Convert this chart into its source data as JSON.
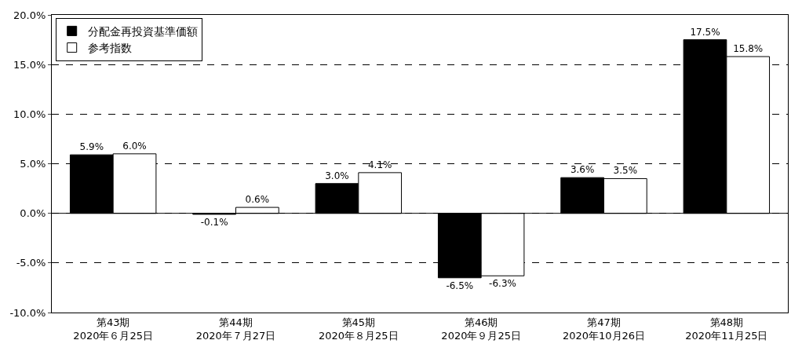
{
  "chart_data": {
    "type": "bar",
    "categories": [
      "第43期\n2020年６月25日",
      "第44期\n2020年７月27日",
      "第45期\n2020年８月25日",
      "第46期\n2020年９月25日",
      "第47期\n2020年10月26日",
      "第48期\n2020年11月25日"
    ],
    "series": [
      {
        "name": "分配金再投資基準価額",
        "color": "#000000",
        "values": [
          5.9,
          -0.1,
          3.0,
          -6.5,
          3.6,
          17.5
        ],
        "value_labels": [
          "5.9%",
          "-0.1%",
          "3.0%",
          "-6.5%",
          "3.6%",
          "17.5%"
        ]
      },
      {
        "name": "参考指数",
        "color": "#ffffff",
        "values": [
          6.0,
          0.6,
          4.1,
          -6.3,
          3.5,
          15.8
        ],
        "value_labels": [
          "6.0%",
          "0.6%",
          "4.1%",
          "-6.3%",
          "3.5%",
          "15.8%"
        ]
      }
    ],
    "ylim": [
      -10,
      20
    ],
    "yticks": [
      {
        "value": -10,
        "label": "-10.0%"
      },
      {
        "value": -5,
        "label": "-5.0%"
      },
      {
        "value": 0,
        "label": "0.0%"
      },
      {
        "value": 5,
        "label": "5.0%"
      },
      {
        "value": 10,
        "label": "10.0%"
      },
      {
        "value": 15,
        "label": "15.0%"
      },
      {
        "value": 20,
        "label": "20.0%"
      }
    ],
    "ref_lines": [
      {
        "axis": "y",
        "value": 0,
        "color": "#000000",
        "line_style": "solid"
      }
    ],
    "grid": "y",
    "line_style": "dashed",
    "legend": "top left"
  }
}
